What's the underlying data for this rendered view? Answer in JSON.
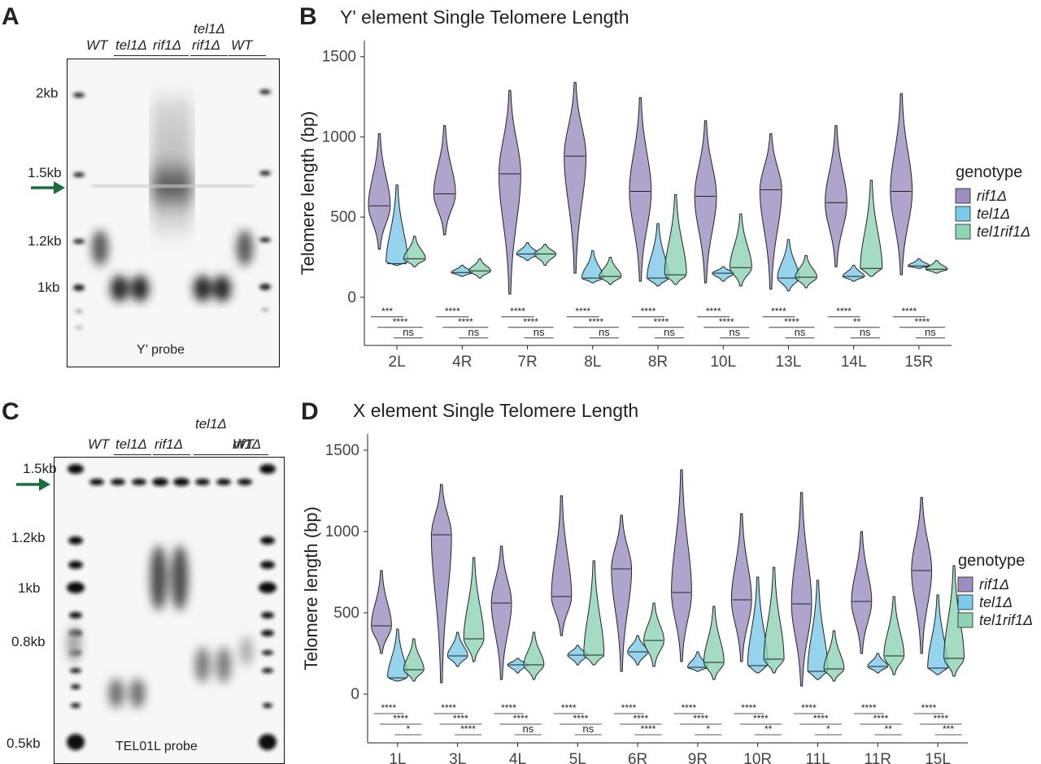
{
  "colors": {
    "rif1": "#9b8fbf",
    "tel1": "#7cc9ea",
    "tel1rif1": "#8dd3b4",
    "arrow": "#1f6b40"
  },
  "panelA": {
    "letter": "A",
    "lanes_top": "WT",
    "lane_labels": [
      "WT",
      "tel1Δ",
      "rif1Δ",
      "tel1Δ",
      "rif1Δ",
      "WT"
    ],
    "lane_label_top": "tel1Δ",
    "markers": [
      "2kb",
      "1.5kb",
      "1.2kb",
      "1kb"
    ],
    "probe": "Y’ probe"
  },
  "panelC": {
    "letter": "C",
    "lane_labels": [
      "WT",
      "tel1Δ",
      "rif1Δ",
      "tel1Δ",
      "rif1Δ",
      "WT"
    ],
    "lane_label_top": "tel1Δ",
    "markers": [
      "1.5kb",
      "1.2kb",
      "1kb",
      "0.8kb",
      "0.5kb"
    ],
    "probe": "TEL01L probe"
  },
  "panelB": {
    "letter": "B",
    "title": "Y' element Single Telomere Length",
    "ylabel": "Telomere length (bp)",
    "yticks": [
      "1500",
      "1000",
      "500",
      "0"
    ],
    "legend_title": "genotype",
    "legend": [
      "rif1Δ",
      "tel1Δ",
      "tel1rif1Δ"
    ]
  },
  "panelD": {
    "letter": "D",
    "title": "X element Single Telomere Length",
    "ylabel": "Telomere length (bp)",
    "yticks": [
      "1500",
      "1000",
      "500",
      "0"
    ],
    "legend_title": "genotype",
    "legend": [
      "rif1Δ",
      "tel1Δ",
      "tel1rif1Δ"
    ]
  },
  "chart_data": [
    {
      "type": "violin",
      "title": "Y' element Single Telomere Length",
      "xlabel": "",
      "ylabel": "Telomere length (bp)",
      "ylim": [
        -300,
        1600
      ],
      "categories": [
        "2L",
        "4R",
        "7R",
        "8L",
        "8R",
        "10L",
        "13L",
        "14L",
        "15R"
      ],
      "series": [
        {
          "name": "rif1Δ",
          "median": [
            570,
            645,
            770,
            880,
            660,
            630,
            670,
            590,
            660
          ],
          "min": [
            300,
            390,
            20,
            150,
            100,
            90,
            50,
            190,
            140
          ],
          "max": [
            1020,
            1070,
            1290,
            1340,
            1245,
            1100,
            1020,
            1070,
            1270
          ]
        },
        {
          "name": "tel1Δ",
          "median": [
            210,
            155,
            270,
            120,
            120,
            150,
            120,
            130,
            195
          ],
          "min": [
            200,
            130,
            230,
            90,
            70,
            100,
            40,
            100,
            180
          ],
          "max": [
            700,
            200,
            340,
            290,
            460,
            190,
            360,
            200,
            240
          ]
        },
        {
          "name": "tel1rif1Δ",
          "median": [
            240,
            165,
            270,
            130,
            140,
            185,
            125,
            180,
            175
          ],
          "min": [
            190,
            120,
            200,
            80,
            80,
            70,
            60,
            130,
            150
          ],
          "max": [
            380,
            240,
            330,
            250,
            640,
            520,
            260,
            730,
            230
          ]
        }
      ],
      "significance": [
        [
          "***",
          "****",
          "ns"
        ],
        [
          "****",
          "****",
          "ns"
        ],
        [
          "****",
          "****",
          "ns"
        ],
        [
          "****",
          "****",
          "ns"
        ],
        [
          "****",
          "****",
          "ns"
        ],
        [
          "****",
          "****",
          "ns"
        ],
        [
          "****",
          "****",
          "ns"
        ],
        [
          "****",
          "**",
          "ns"
        ],
        [
          "****",
          "****",
          "ns"
        ]
      ]
    },
    {
      "type": "violin",
      "title": "X element Single Telomere Length",
      "xlabel": "",
      "ylabel": "Telomere length (bp)",
      "ylim": [
        -300,
        1600
      ],
      "categories": [
        "1L",
        "3L",
        "4L",
        "5L",
        "6R",
        "9R",
        "10R",
        "11L",
        "11R",
        "15L"
      ],
      "series": [
        {
          "name": "rif1Δ",
          "median": [
            420,
            980,
            560,
            600,
            770,
            625,
            580,
            555,
            570,
            760
          ],
          "min": [
            250,
            70,
            90,
            360,
            140,
            200,
            200,
            50,
            250,
            250
          ],
          "max": [
            760,
            1290,
            910,
            1220,
            1100,
            1380,
            1110,
            1240,
            1000,
            1210
          ]
        },
        {
          "name": "tel1Δ",
          "median": [
            100,
            235,
            180,
            240,
            260,
            165,
            175,
            140,
            170,
            160
          ],
          "min": [
            80,
            170,
            130,
            180,
            180,
            140,
            130,
            90,
            130,
            120
          ],
          "max": [
            400,
            380,
            220,
            300,
            360,
            260,
            720,
            700,
            250,
            610
          ]
        },
        {
          "name": "tel1rif1Δ",
          "median": [
            150,
            340,
            180,
            240,
            330,
            195,
            215,
            155,
            235,
            220
          ],
          "min": [
            80,
            200,
            90,
            180,
            170,
            90,
            130,
            80,
            120,
            110
          ],
          "max": [
            340,
            840,
            380,
            820,
            560,
            540,
            780,
            390,
            600,
            790
          ]
        }
      ],
      "significance": [
        [
          "****",
          "****",
          "*"
        ],
        [
          "****",
          "****",
          "****"
        ],
        [
          "****",
          "****",
          "ns"
        ],
        [
          "****",
          "****",
          "ns"
        ],
        [
          "****",
          "****",
          "****"
        ],
        [
          "****",
          "****",
          "*"
        ],
        [
          "****",
          "****",
          "**"
        ],
        [
          "****",
          "****",
          "*"
        ],
        [
          "****",
          "****",
          "**"
        ],
        [
          "****",
          "****",
          "***"
        ]
      ]
    }
  ]
}
